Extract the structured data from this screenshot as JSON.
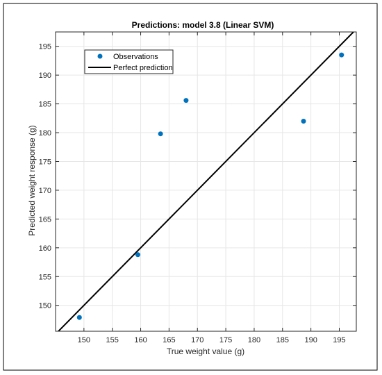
{
  "chart_data": {
    "type": "scatter",
    "title": "Predictions: model 3.8 (Linear SVM)",
    "xlabel": "True weight value (g)",
    "ylabel": "Predicted weight response (g)",
    "xlim": [
      145,
      198
    ],
    "ylim": [
      145.5,
      197.5
    ],
    "x_ticks": [
      150,
      155,
      160,
      165,
      170,
      175,
      180,
      185,
      190,
      195
    ],
    "y_ticks": [
      150,
      155,
      160,
      165,
      170,
      175,
      180,
      185,
      190,
      195
    ],
    "grid": true,
    "legend_position": "top-left",
    "series": [
      {
        "name": "Observations",
        "type": "scatter",
        "color": "#0072BD",
        "x": [
          149.2,
          159.5,
          163.5,
          168.0,
          188.7,
          195.4
        ],
        "y": [
          147.9,
          158.8,
          179.8,
          185.6,
          182.0,
          193.5
        ]
      },
      {
        "name": "Perfect prediction",
        "type": "line",
        "color": "#000000",
        "x": [
          145,
          198
        ],
        "y": [
          145,
          198
        ]
      }
    ]
  }
}
